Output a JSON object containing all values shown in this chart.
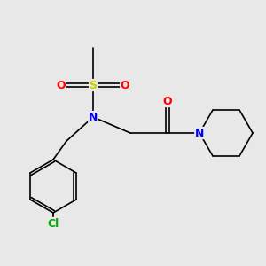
{
  "background_color": "#e8e8e8",
  "bond_color": "#000000",
  "atom_colors": {
    "N": "#0000ff",
    "O": "#ff0000",
    "S": "#cccc00",
    "Cl": "#00aa00",
    "C": "#000000"
  },
  "font_size_atoms": 9,
  "font_size_small": 7.5
}
